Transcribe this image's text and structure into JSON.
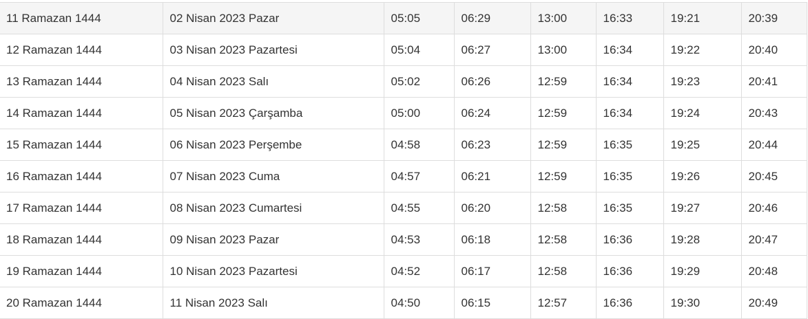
{
  "table": {
    "rows": [
      [
        "11 Ramazan 1444",
        "02 Nisan 2023 Pazar",
        "05:05",
        "06:29",
        "13:00",
        "16:33",
        "19:21",
        "20:39"
      ],
      [
        "12 Ramazan 1444",
        "03 Nisan 2023 Pazartesi",
        "05:04",
        "06:27",
        "13:00",
        "16:34",
        "19:22",
        "20:40"
      ],
      [
        "13 Ramazan 1444",
        "04 Nisan 2023 Salı",
        "05:02",
        "06:26",
        "12:59",
        "16:34",
        "19:23",
        "20:41"
      ],
      [
        "14 Ramazan 1444",
        "05 Nisan 2023 Çarşamba",
        "05:00",
        "06:24",
        "12:59",
        "16:34",
        "19:24",
        "20:43"
      ],
      [
        "15 Ramazan 1444",
        "06 Nisan 2023 Perşembe",
        "04:58",
        "06:23",
        "12:59",
        "16:35",
        "19:25",
        "20:44"
      ],
      [
        "16 Ramazan 1444",
        "07 Nisan 2023 Cuma",
        "04:57",
        "06:21",
        "12:59",
        "16:35",
        "19:26",
        "20:45"
      ],
      [
        "17 Ramazan 1444",
        "08 Nisan 2023 Cumartesi",
        "04:55",
        "06:20",
        "12:58",
        "16:35",
        "19:27",
        "20:46"
      ],
      [
        "18 Ramazan 1444",
        "09 Nisan 2023 Pazar",
        "04:53",
        "06:18",
        "12:58",
        "16:36",
        "19:28",
        "20:47"
      ],
      [
        "19 Ramazan 1444",
        "10 Nisan 2023 Pazartesi",
        "04:52",
        "06:17",
        "12:58",
        "16:36",
        "19:29",
        "20:48"
      ],
      [
        "20 Ramazan 1444",
        "11 Nisan 2023 Salı",
        "04:50",
        "06:15",
        "12:57",
        "16:36",
        "19:30",
        "20:49"
      ]
    ]
  }
}
